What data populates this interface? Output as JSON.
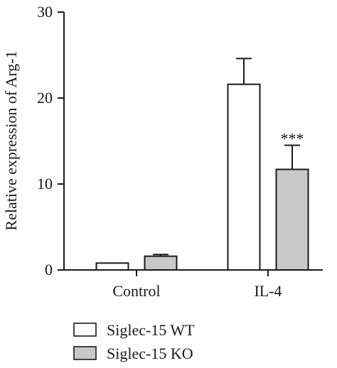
{
  "chart_data": {
    "type": "bar",
    "title": "",
    "xlabel": "",
    "ylabel": "Relative expression of Arg-1",
    "ylim": [
      0,
      30
    ],
    "yticks": [
      0,
      10,
      20,
      30
    ],
    "categories": [
      "Control",
      "IL-4"
    ],
    "series": [
      {
        "name": "Siglec-15 WT",
        "color": "#ffffff",
        "values": [
          0.8,
          21.6
        ],
        "errors": [
          0.0,
          3.0
        ]
      },
      {
        "name": "Siglec-15 KO",
        "color": "#c8c8c8",
        "values": [
          1.6,
          11.7
        ],
        "errors": [
          0.2,
          2.8
        ]
      }
    ],
    "annotations": [
      {
        "text": "***",
        "category": "IL-4",
        "series": "Siglec-15 KO"
      }
    ],
    "legend_position": "bottom-left",
    "grid": false
  }
}
